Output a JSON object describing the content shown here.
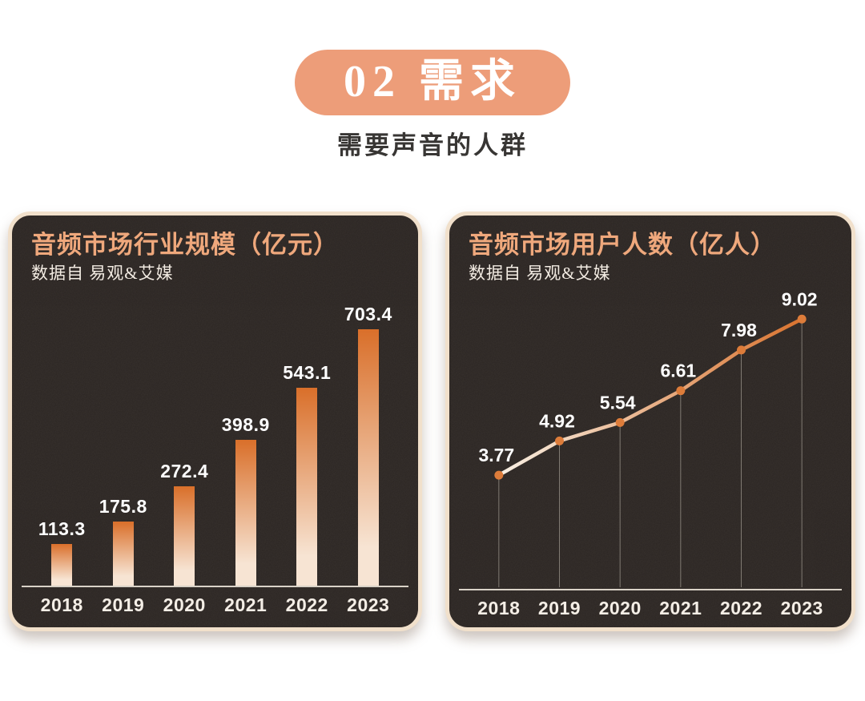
{
  "header": {
    "badge_label": "02 需求",
    "subtitle": "需要声音的人群"
  },
  "colors": {
    "badge_bg": "#ed9d79",
    "card_bg": "#2b2522",
    "card_border": "#f1e0cb",
    "title_text": "#efa87c",
    "source_text": "#f3ece3",
    "bar_top": "#d96f2a",
    "bar_bottom": "#f7e4d3",
    "line_start": "#f8f0e4",
    "line_end": "#d9732f",
    "dot": "#dd7c3a",
    "drop_line": "#9b958c",
    "axis_line": "#d9d2c7",
    "value_label": "#ffffff",
    "year_label": "#f4eee6"
  },
  "chart_data": [
    {
      "type": "bar",
      "title": "音频市场行业规模（亿元）",
      "source": "数据自 易观&艾媒",
      "categories": [
        "2018",
        "2019",
        "2020",
        "2021",
        "2022",
        "2023"
      ],
      "values": [
        113.3,
        175.8,
        272.4,
        398.9,
        543.1,
        703.4
      ],
      "xlabel": "",
      "ylabel": "亿元",
      "ylim": [
        0,
        720
      ],
      "grid": false,
      "legend": "none"
    },
    {
      "type": "line",
      "title": "音频市场用户人数（亿人）",
      "source": "数据自 易观&艾媒",
      "categories": [
        "2018",
        "2019",
        "2020",
        "2021",
        "2022",
        "2023"
      ],
      "values": [
        3.77,
        4.92,
        5.54,
        6.61,
        7.98,
        9.02
      ],
      "xlabel": "",
      "ylabel": "亿人",
      "ylim": [
        0,
        9.7
      ],
      "grid": false,
      "legend": "none",
      "markers": true,
      "drop_lines": true
    }
  ]
}
